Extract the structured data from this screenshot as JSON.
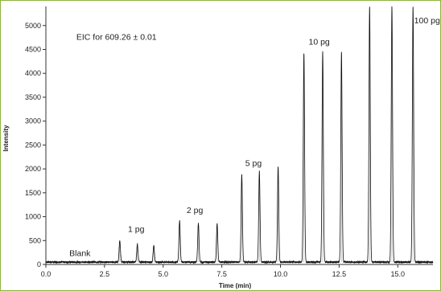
{
  "chart_data": {
    "type": "line",
    "xlabel": "Time (min)",
    "ylabel": "Intensity",
    "xlim": [
      0,
      16.5
    ],
    "ylim": [
      0,
      5400
    ],
    "x_ticks": [
      0.0,
      2.5,
      5.0,
      7.5,
      10.0,
      12.5,
      15.0
    ],
    "x_tick_labels": [
      "0.0",
      "2.5",
      "5.0",
      "7.5",
      "10.0",
      "12.5",
      "15.0"
    ],
    "y_ticks": [
      0,
      500,
      1000,
      1500,
      2000,
      2500,
      3000,
      3500,
      4000,
      4500,
      5000
    ],
    "y_tick_labels": [
      "0",
      "500",
      "1000",
      "1500",
      "2000",
      "2500",
      "3000",
      "3500",
      "4000",
      "4500",
      "5000"
    ],
    "baseline": 50,
    "peaks": [
      {
        "x": 3.15,
        "y": 500
      },
      {
        "x": 3.9,
        "y": 430
      },
      {
        "x": 4.6,
        "y": 390
      },
      {
        "x": 5.7,
        "y": 920
      },
      {
        "x": 6.5,
        "y": 870
      },
      {
        "x": 7.3,
        "y": 860
      },
      {
        "x": 8.35,
        "y": 1880
      },
      {
        "x": 9.1,
        "y": 1950
      },
      {
        "x": 9.9,
        "y": 2040
      },
      {
        "x": 11.0,
        "y": 4420
      },
      {
        "x": 11.8,
        "y": 4460
      },
      {
        "x": 12.6,
        "y": 4430
      },
      {
        "x": 13.8,
        "y": 5400
      },
      {
        "x": 14.75,
        "y": 5400
      },
      {
        "x": 15.65,
        "y": 5400
      }
    ],
    "annotations": [
      {
        "text": "EIC for 609.26 ± 0.01",
        "x": 1.3,
        "y": 4700
      },
      {
        "text": "Blank",
        "x": 1.0,
        "y": 180
      },
      {
        "text": "1 pg",
        "x": 3.5,
        "y": 680
      },
      {
        "text": "2 pg",
        "x": 6.0,
        "y": 1080
      },
      {
        "text": "5 pg",
        "x": 8.5,
        "y": 2060
      },
      {
        "text": "10 pg",
        "x": 11.2,
        "y": 4600
      },
      {
        "text": "100 pg",
        "x": 15.7,
        "y": 5050
      }
    ]
  },
  "colors": {
    "trace": "#111111",
    "axis": "#333333",
    "frame": "#8db43c"
  }
}
